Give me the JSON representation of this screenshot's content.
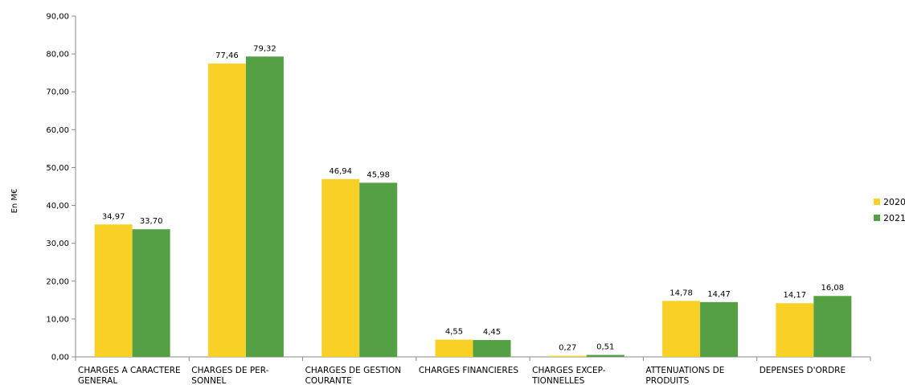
{
  "chart_data": {
    "type": "bar",
    "ylabel": "En M€",
    "ylim": [
      0,
      90
    ],
    "yticks": [
      "0,00",
      "10,00",
      "20,00",
      "30,00",
      "40,00",
      "50,00",
      "60,00",
      "70,00",
      "80,00",
      "90,00"
    ],
    "categories": [
      [
        "CHARGES A CARACTERE",
        "GENERAL"
      ],
      [
        "CHARGES DE PER-",
        "SONNEL"
      ],
      [
        "CHARGES DE GESTION",
        "COURANTE"
      ],
      [
        "CHARGES FINANCIERES"
      ],
      [
        "CHARGES EXCEP-",
        "TIONNELLES"
      ],
      [
        "ATTENUATIONS DE",
        "PRODUITS"
      ],
      [
        "DEPENSES D'ORDRE"
      ]
    ],
    "series": [
      {
        "name": "2020",
        "color": "#F9D126",
        "values": [
          34.97,
          77.46,
          46.94,
          4.55,
          0.27,
          14.78,
          14.17
        ],
        "labels": [
          "34,97",
          "77,46",
          "46,94",
          "4,55",
          "0,27",
          "14,78",
          "14,17"
        ]
      },
      {
        "name": "2021",
        "color": "#55A045",
        "values": [
          33.7,
          79.32,
          45.98,
          4.45,
          0.51,
          14.47,
          16.08
        ],
        "labels": [
          "33,70",
          "79,32",
          "45,98",
          "4,45",
          "0,51",
          "14,47",
          "16,08"
        ]
      }
    ],
    "legend_position": "right",
    "grid": false
  }
}
